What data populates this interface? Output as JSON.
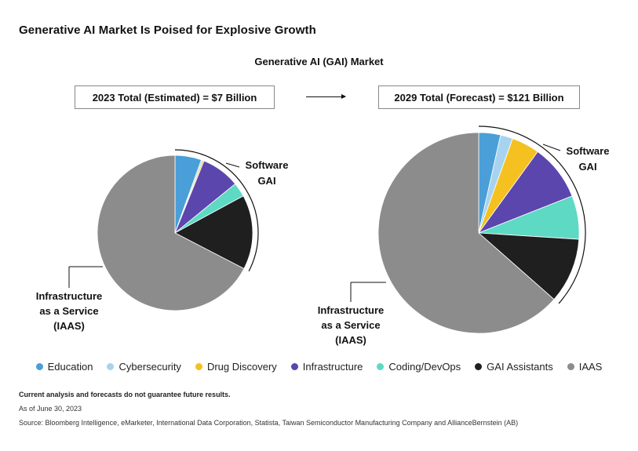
{
  "page": {
    "title": "Generative AI Market Is Poised for Explosive Growth",
    "subtitle": "Generative AI (GAI) Market",
    "box_2023": "2023 Total (Estimated) = $7 Billion",
    "box_2029": "2029 Total (Forecast) = $121 Billion",
    "footnote_bold": "Current analysis and forecasts do not guarantee future results.",
    "footnote_date": "As of June 30, 2023",
    "footnote_source": "Source: Bloomberg Intelligence, eMarketer, International Data Corporation, Statista, Taiwan Semiconductor Manufacturing Company and AllianceBernstein (AB)"
  },
  "chart_data": [
    {
      "type": "pie",
      "total": "$7 Billion",
      "year": 2023,
      "categories": [
        "Education",
        "Cybersecurity",
        "Drug Discovery",
        "Infrastructure",
        "Coding/DevOps",
        "GAI Assistants",
        "IAAS"
      ],
      "values": [
        5.5,
        0.3,
        0.3,
        8.0,
        3.0,
        15.5,
        67.4
      ],
      "annotations": [
        "Software GAI",
        "Infrastructure as a Service (IAAS)"
      ]
    },
    {
      "type": "pie",
      "total": "$121 Billion",
      "year": 2029,
      "categories": [
        "Education",
        "Cybersecurity",
        "Drug Discovery",
        "Infrastructure",
        "Coding/DevOps",
        "GAI Assistants",
        "IAAS"
      ],
      "values": [
        3.5,
        2.0,
        4.5,
        9.0,
        7.0,
        10.5,
        63.5
      ],
      "annotations": [
        "Software GAI",
        "Infrastructure as a Service (IAAS)"
      ]
    }
  ],
  "legend": [
    {
      "label": "Education",
      "color": "#4a9fd8"
    },
    {
      "label": "Cybersecurity",
      "color": "#a8d3ef"
    },
    {
      "label": "Drug Discovery",
      "color": "#f5c121"
    },
    {
      "label": "Infrastructure",
      "color": "#5b46ad"
    },
    {
      "label": "Coding/DevOps",
      "color": "#5ed9c3"
    },
    {
      "label": "GAI Assistants",
      "color": "#1f1f1f"
    },
    {
      "label": "IAAS",
      "color": "#8c8c8c"
    }
  ],
  "labels": {
    "software_line1": "Software",
    "software_line2": "GAI",
    "iaas_line1": "Infrastructure",
    "iaas_line2": "as a Service",
    "iaas_line3": "(IAAS)"
  }
}
